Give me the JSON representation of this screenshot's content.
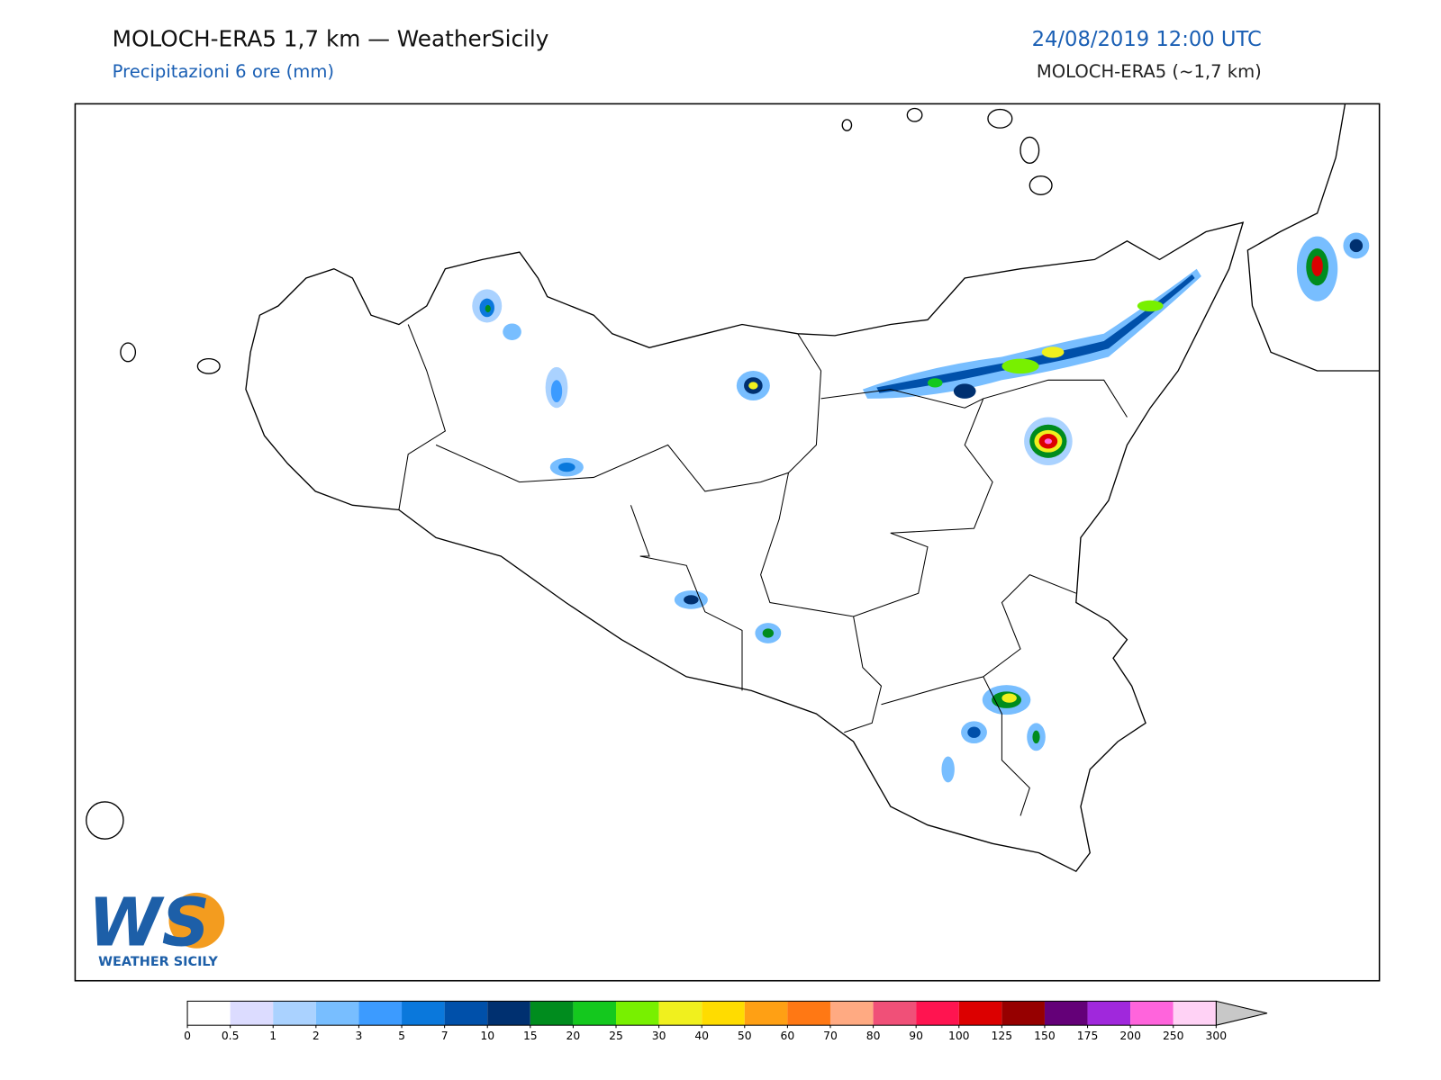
{
  "header": {
    "title": "MOLOCH-ERA5 1,7 km — WeatherSicily",
    "subtitle": "Precipitazioni 6 ore (mm)",
    "datetime": "24/08/2019 12:00 UTC",
    "model": "MOLOCH-ERA5 (~1,7 km)"
  },
  "logo": {
    "letters": "WS",
    "caption": "WEATHER SICILY"
  },
  "colorbar": {
    "ticks": [
      0,
      0.5,
      1,
      2,
      3,
      5,
      7,
      10,
      15,
      20,
      25,
      30,
      40,
      50,
      60,
      70,
      80,
      90,
      100,
      125,
      150,
      175,
      200,
      250,
      300
    ],
    "colors": [
      "#ffffff",
      "#dcdcff",
      "#aad2ff",
      "#78beff",
      "#3c9bff",
      "#0a78dc",
      "#0050aa",
      "#003070",
      "#008c1e",
      "#14c81e",
      "#78f000",
      "#f0f01e",
      "#ffdc00",
      "#ffa014",
      "#ff7814",
      "#ffaa82",
      "#f05078",
      "#ff1450",
      "#dc0000",
      "#960000",
      "#640078",
      "#a028dc",
      "#ff64dc",
      "#ffd2f5"
    ]
  }
}
